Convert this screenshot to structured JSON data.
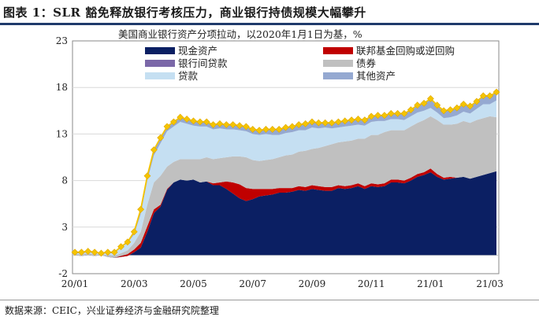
{
  "figure": {
    "title": "图表 1：SLR 豁免释放银行考核压力，商业银行持债规模大幅攀升",
    "source": "数据来源：CEIC，兴业证券经济与金融研究院整理"
  },
  "chart_data": {
    "type": "area",
    "stacked": true,
    "title": "美国商业银行资产分项拉动，以2020年1月1日为基，%",
    "ylim": [
      -2,
      23
    ],
    "yticks": [
      -2,
      3,
      8,
      13,
      18,
      23
    ],
    "x_tick_labels": [
      "20/01",
      "20/03",
      "20/05",
      "20/07",
      "20/09",
      "20/11",
      "21/01",
      "21/03"
    ],
    "x_tick_index": [
      0,
      9,
      18,
      27,
      36,
      45,
      54,
      63
    ],
    "legend": [
      {
        "key": "cash",
        "label": "现金资产",
        "color": "#0b1f63"
      },
      {
        "key": "fedfunds",
        "label": "联邦基金回购或逆回购",
        "color": "#c00000"
      },
      {
        "key": "interbank",
        "label": "银行间贷款",
        "color": "#7b68a8"
      },
      {
        "key": "securities",
        "label": "债券",
        "color": "#c0c0c0"
      },
      {
        "key": "loans",
        "label": "贷款",
        "color": "#c5dff2"
      },
      {
        "key": "other",
        "label": "其他资产",
        "color": "#95a9d1"
      }
    ],
    "series": [
      {
        "key": "cash",
        "values": [
          0,
          -0.1,
          0,
          -0.1,
          0,
          -0.2,
          -0.3,
          -0.2,
          -0.1,
          0.3,
          0.8,
          2.5,
          4.5,
          5.2,
          7,
          7.8,
          8.1,
          8.0,
          8.1,
          7.8,
          7.9,
          7.5,
          7.5,
          7.1,
          6.6,
          6.1,
          5.8,
          6.0,
          6.3,
          6.4,
          6.5,
          6.7,
          6.7,
          6.8,
          7.0,
          6.9,
          7.1,
          7.0,
          6.9,
          6.9,
          7.2,
          7.1,
          7.2,
          7.4,
          7.1,
          7.4,
          7.3,
          7.4,
          7.8,
          7.8,
          7.7,
          8.0,
          8.4,
          8.6,
          8.9,
          8.4,
          8.1,
          8.2,
          8.3,
          8.4,
          8.2,
          8.4,
          8.6,
          8.8,
          9.0
        ]
      },
      {
        "key": "fedfunds",
        "values": [
          0,
          0,
          0,
          0,
          0,
          0,
          0,
          0.1,
          0.2,
          0.3,
          0.5,
          0.6,
          0.4,
          0.2,
          0.1,
          0,
          0,
          0,
          0,
          0,
          0,
          0.2,
          0.3,
          0.8,
          1.2,
          1.5,
          1.4,
          1.1,
          0.8,
          0.7,
          0.6,
          0.5,
          0.5,
          0.4,
          0.4,
          0.4,
          0.4,
          0.4,
          0.4,
          0.4,
          0.3,
          0.3,
          0.3,
          0.3,
          0.3,
          0.3,
          0.3,
          0.3,
          0.3,
          0.3,
          0.3,
          0.3,
          0.3,
          0.3,
          0.4,
          0.3,
          0.2,
          0.2,
          0,
          0,
          0,
          0,
          0,
          0,
          0
        ]
      },
      {
        "key": "interbank",
        "values": [
          0,
          0,
          0,
          0,
          0,
          0,
          0,
          0,
          0,
          0,
          0,
          0,
          0,
          0,
          0,
          0,
          0,
          0,
          0,
          0,
          0,
          0,
          0,
          0,
          0,
          0,
          0,
          0,
          0,
          0,
          0,
          0,
          0,
          0,
          0,
          0,
          0,
          0,
          0,
          0,
          0,
          0,
          0,
          0,
          0,
          0,
          0,
          0,
          0,
          0,
          0,
          0,
          0,
          0,
          0,
          0,
          0,
          0,
          0,
          0,
          0,
          0,
          0,
          0,
          0
        ]
      },
      {
        "key": "securities",
        "values": [
          0.1,
          0.2,
          0.2,
          0.2,
          0.1,
          0.2,
          0.2,
          0.3,
          0.4,
          0.7,
          1.2,
          2.3,
          2.9,
          3.1,
          2.4,
          2.2,
          2.2,
          2.3,
          2.2,
          2.5,
          2.6,
          2.6,
          2.6,
          2.6,
          2.8,
          3.0,
          3.3,
          3.1,
          3.0,
          3.1,
          3.2,
          3.3,
          3.5,
          3.6,
          3.7,
          3.9,
          3.9,
          4.1,
          4.4,
          4.6,
          4.6,
          4.8,
          4.8,
          4.8,
          5.1,
          5.2,
          5.3,
          5.5,
          5.3,
          5.3,
          5.4,
          5.5,
          5.5,
          5.6,
          5.6,
          5.8,
          5.7,
          5.6,
          5.8,
          6.0,
          6.0,
          6.1,
          6.1,
          6.1,
          5.8
        ]
      },
      {
        "key": "loans",
        "values": [
          0.1,
          0.1,
          0.1,
          0.1,
          0.1,
          0.2,
          0.3,
          0.6,
          0.8,
          0.9,
          1.9,
          2.6,
          2.9,
          3.5,
          3.8,
          3.8,
          4.0,
          3.8,
          3.6,
          3.5,
          3.3,
          3.2,
          3.2,
          3.0,
          2.9,
          2.8,
          2.8,
          2.8,
          2.8,
          2.8,
          2.6,
          2.4,
          2.4,
          2.4,
          2.3,
          2.2,
          2.3,
          2.1,
          2.0,
          1.7,
          1.6,
          1.6,
          1.6,
          1.5,
          1.4,
          1.4,
          1.5,
          1.2,
          1.2,
          1.2,
          1.1,
          1.1,
          1.1,
          1.0,
          0.9,
          0.8,
          0.7,
          0.8,
          0.9,
          1.0,
          1.0,
          1.2,
          1.5,
          1.3,
          1.8
        ]
      },
      {
        "key": "other",
        "values": [
          0.1,
          0.1,
          0.1,
          0.1,
          0,
          0.1,
          0.1,
          0.1,
          0.1,
          0.3,
          0.5,
          0.5,
          0.6,
          0.6,
          0.5,
          0.5,
          0.5,
          0.5,
          0.5,
          0.5,
          0.5,
          0.5,
          0.5,
          0.5,
          0.5,
          0.5,
          0.5,
          0.5,
          0.5,
          0.5,
          0.6,
          0.6,
          0.6,
          0.6,
          0.6,
          0.7,
          0.6,
          0.6,
          0.5,
          0.6,
          0.6,
          0.6,
          0.6,
          0.6,
          0.6,
          0.6,
          0.6,
          0.6,
          0.6,
          0.6,
          0.7,
          0.7,
          0.8,
          0.8,
          0.9,
          0.8,
          0.8,
          0.8,
          0.8,
          0.8,
          0.8,
          0.8,
          0.9,
          0.9,
          0.9
        ]
      }
    ],
    "total": {
      "color": "#f5c400",
      "marker": "diamond",
      "values": [
        0.3,
        0.3,
        0.4,
        0.3,
        0.2,
        0.3,
        0.3,
        0.9,
        1.4,
        2.5,
        4.9,
        8.5,
        11.3,
        12.6,
        13.8,
        14.3,
        14.8,
        14.6,
        14.4,
        14.3,
        14.3,
        14.0,
        14.1,
        14.0,
        14.0,
        13.9,
        13.8,
        13.5,
        13.4,
        13.5,
        13.5,
        13.5,
        13.7,
        13.8,
        14.0,
        14.1,
        14.3,
        14.2,
        14.2,
        14.2,
        14.3,
        14.4,
        14.5,
        14.6,
        14.5,
        14.9,
        15.0,
        15.0,
        15.2,
        15.2,
        15.2,
        15.6,
        16.1,
        16.3,
        16.8,
        16.1,
        15.5,
        15.6,
        15.8,
        16.2,
        16.0,
        16.5,
        17.1,
        17.1,
        17.5
      ]
    }
  }
}
